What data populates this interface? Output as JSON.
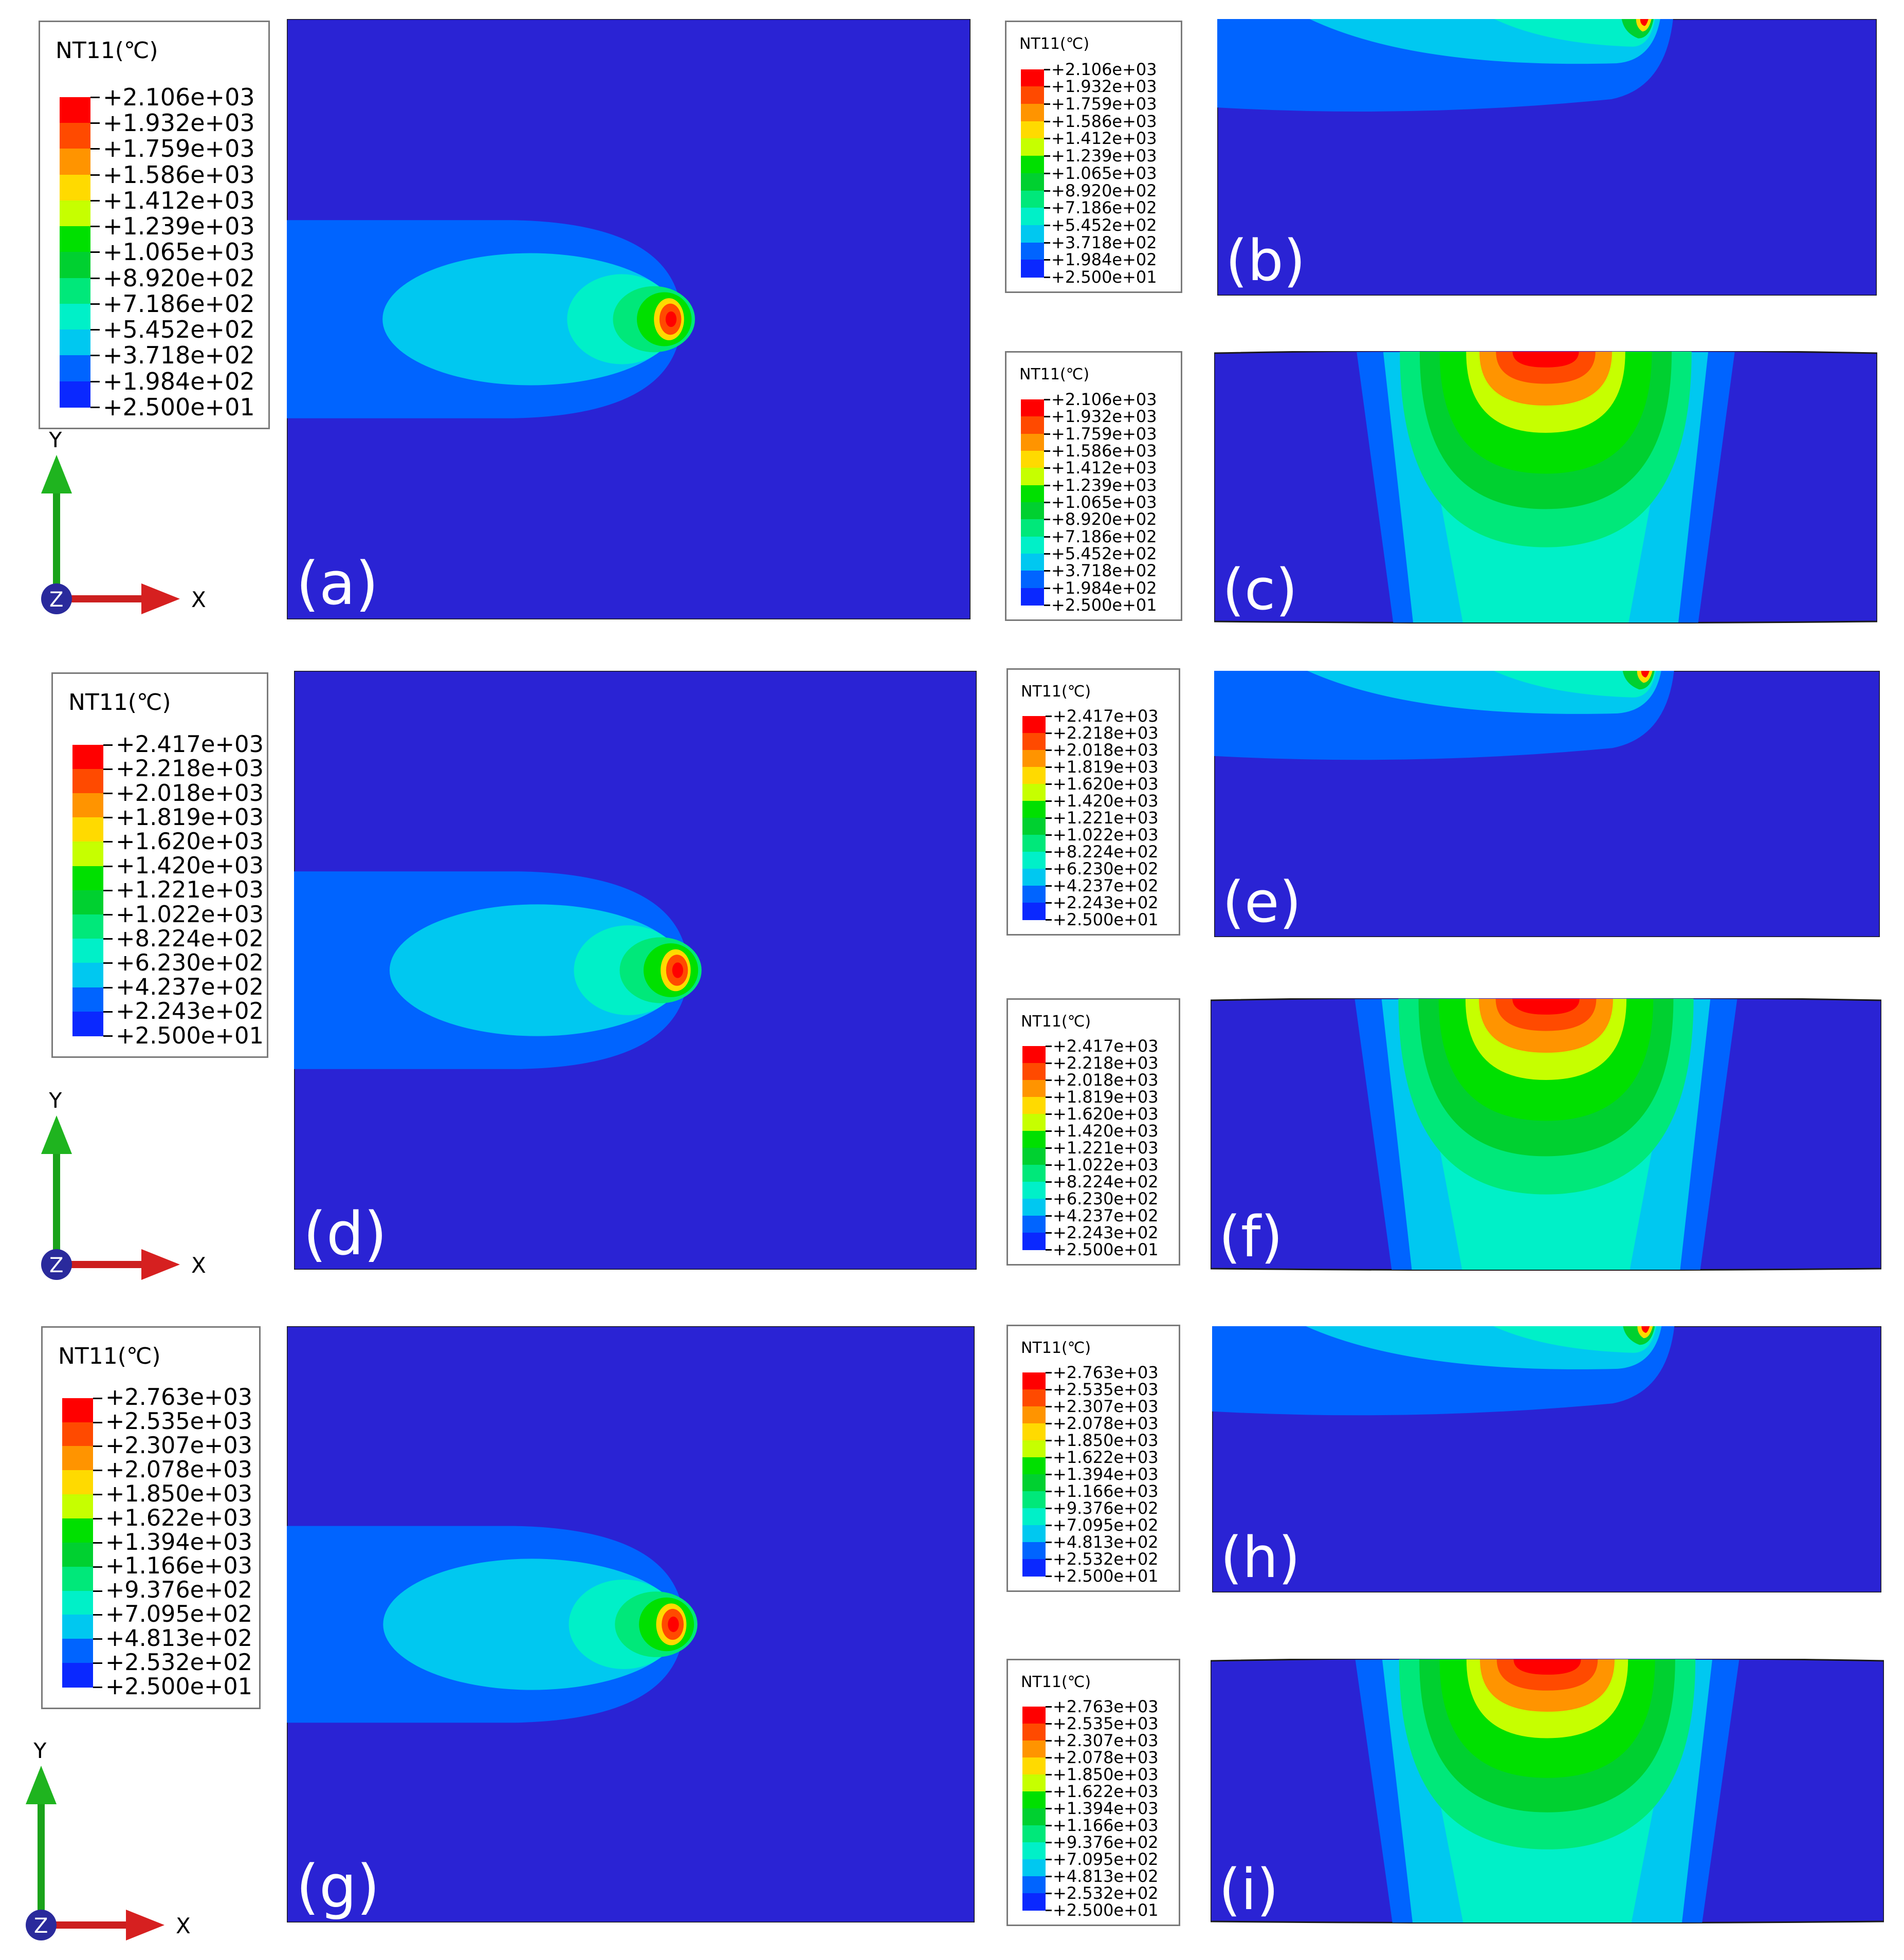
{
  "field_label": "NT11(℃)",
  "colors": {
    "r13": "#ff0000",
    "r12": "#ff4a00",
    "r11": "#ff9400",
    "r10": "#ffda00",
    "r9": "#c6ff00",
    "r8": "#00e000",
    "r7": "#00d030",
    "r6": "#00e87a",
    "r5": "#00f0c8",
    "r4": "#00c8f0",
    "r3": "#0064ff",
    "r2": "#0a28ff",
    "r1": "#3000ff",
    "mesh_bg": "#2a23d4"
  },
  "legends": {
    "set1": [
      "+2.106e+03",
      "+1.932e+03",
      "+1.759e+03",
      "+1.586e+03",
      "+1.412e+03",
      "+1.239e+03",
      "+1.065e+03",
      "+8.920e+02",
      "+7.186e+02",
      "+5.452e+02",
      "+3.718e+02",
      "+1.984e+02",
      "+2.500e+01"
    ],
    "set2": [
      "+2.417e+03",
      "+2.218e+03",
      "+2.018e+03",
      "+1.819e+03",
      "+1.620e+03",
      "+1.420e+03",
      "+1.221e+03",
      "+1.022e+03",
      "+8.224e+02",
      "+6.230e+02",
      "+4.237e+02",
      "+2.243e+02",
      "+2.500e+01"
    ],
    "set3": [
      "+2.763e+03",
      "+2.535e+03",
      "+2.307e+03",
      "+2.078e+03",
      "+1.850e+03",
      "+1.622e+03",
      "+1.394e+03",
      "+1.166e+03",
      "+9.376e+02",
      "+7.095e+02",
      "+4.813e+02",
      "+2.532e+02",
      "+2.500e+01"
    ]
  },
  "panels": {
    "a": "(a)",
    "b": "(b)",
    "c": "(c)",
    "d": "(d)",
    "e": "(e)",
    "f": "(f)",
    "g": "(g)",
    "h": "(h)",
    "i": "(i)"
  },
  "triad": {
    "y": "Y",
    "x": "X",
    "z": "Z"
  }
}
